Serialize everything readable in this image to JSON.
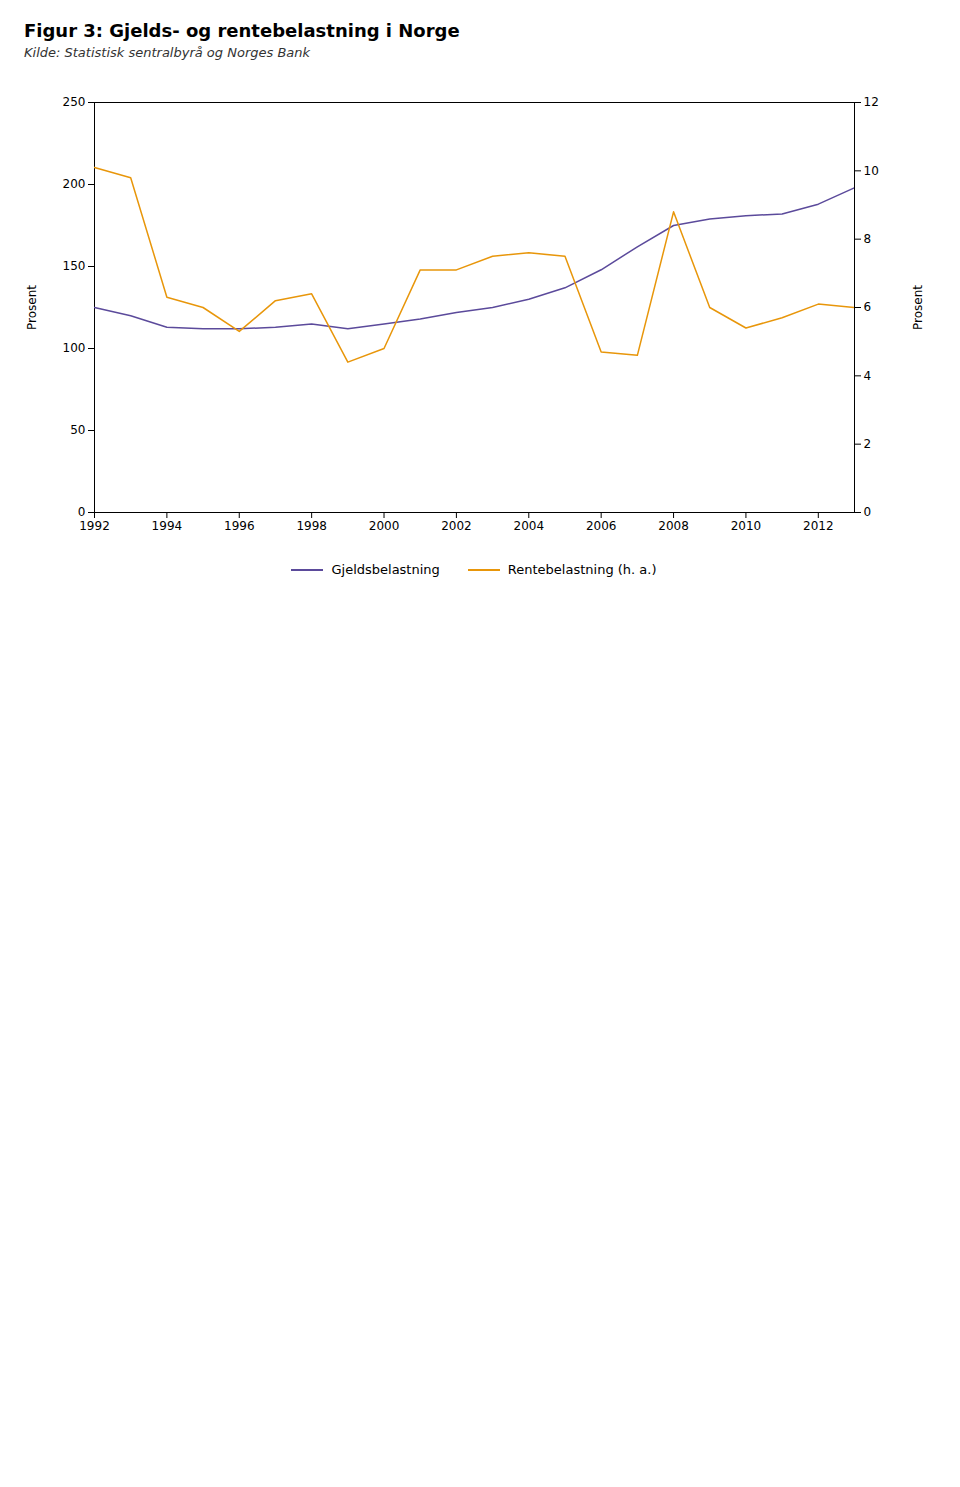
{
  "chart_data": {
    "type": "line",
    "title": "Figur 3: Gjelds- og rentebelastning i Norge",
    "subtitle": "Kilde: Statistisk sentralbyrå og Norges Bank",
    "ylabel": "Prosent",
    "y2label": "Prosent",
    "x": [
      1992,
      1993,
      1994,
      1995,
      1996,
      1997,
      1998,
      1999,
      2000,
      2001,
      2002,
      2003,
      2004,
      2005,
      2006,
      2007,
      2008,
      2009,
      2010,
      2011,
      2012,
      2013
    ],
    "series": [
      {
        "name": "Gjeldsbelastning",
        "color": "#5B4A9B",
        "axis": "y",
        "values": [
          125,
          120,
          113,
          112,
          112,
          113,
          115,
          112,
          115,
          118,
          122,
          125,
          130,
          137,
          148,
          162,
          175,
          179,
          181,
          182,
          188,
          198
        ]
      },
      {
        "name": "Rentebelastning (h. a.)",
        "color": "#E8960A",
        "axis": "y2",
        "values": [
          10.1,
          9.8,
          6.3,
          6.0,
          5.3,
          6.2,
          6.4,
          4.4,
          4.8,
          7.1,
          7.1,
          7.5,
          7.6,
          7.5,
          4.7,
          4.6,
          8.8,
          6.0,
          5.4,
          5.7,
          6.1,
          6.0
        ]
      }
    ],
    "xlim": [
      1992,
      2013
    ],
    "xticks": [
      1992,
      1994,
      1996,
      1998,
      2000,
      2002,
      2004,
      2006,
      2008,
      2010,
      2012
    ],
    "ylim": [
      0,
      250
    ],
    "yticks": [
      0,
      50,
      100,
      150,
      200,
      250
    ],
    "y2lim": [
      0,
      12
    ],
    "y2ticks": [
      0,
      2,
      4,
      6,
      8,
      10,
      12
    ],
    "legend": "bottom",
    "grid": false
  }
}
